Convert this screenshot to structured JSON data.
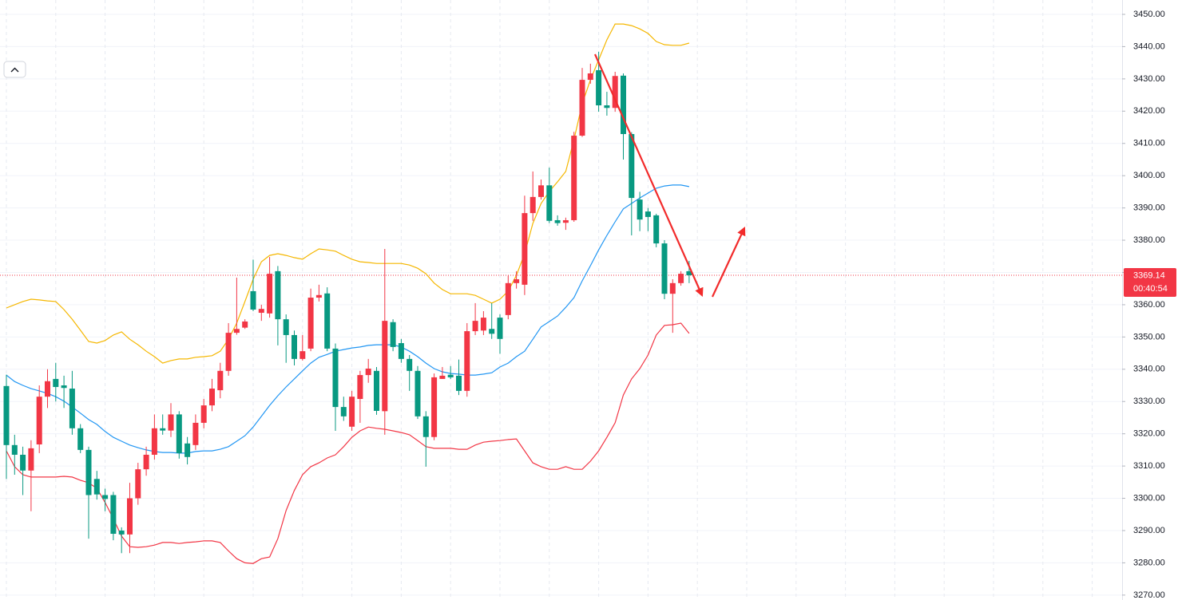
{
  "chart_data": {
    "type": "candlestick",
    "up_color": "#f23645",
    "down_color": "#089981",
    "grid": true,
    "open": [
      3334.8,
      3316.5,
      3313.5,
      3308.6,
      3316.7,
      3331.5,
      3337,
      3335,
      3334,
      3321.7,
      3315,
      3306,
      3301,
      3301,
      3290,
      3288.8,
      3300,
      3309,
      3313.5,
      3321.7,
      3321,
      3326,
      3317,
      3316.5,
      3323.4,
      3328.8,
      3333.5,
      3339.5,
      3351.3,
      3352.9,
      3364.2,
      3357.5,
      3357.3,
      3370.4,
      3355.5,
      3350.6,
      3343.2,
      3346.4,
      3362.2,
      3363.5,
      3346.4,
      3328.3,
      3322.2,
      3330.8,
      3338.2,
      3339.5,
      3327,
      3354.6,
      3348.1,
      3343.2,
      3339.5,
      3325.4,
      3319,
      3337,
      3338.3,
      3338,
      3333.3,
      3351.8,
      3352,
      3352.5,
      3356,
      3356.8,
      3366.7,
      3366.2,
      3388.4,
      3393.4,
      3397,
      3386.2,
      3385.4,
      3386.2,
      3412.4,
      3429.7,
      3432.7,
      3421.8,
      3421,
      3431,
      3412.9,
      3392.6,
      3388.9,
      3387.7,
      3379,
      3363.4,
      3366.7,
      3370.4
    ],
    "high": [
      3338.3,
      3319.7,
      3316,
      3318,
      3335,
      3340,
      3342,
      3338,
      3339.5,
      3323,
      3316,
      3308.5,
      3303,
      3302,
      3291,
      3304.8,
      3311,
      3316,
      3326,
      3326,
      3329.5,
      3327,
      3319,
      3326,
      3330.8,
      3337,
      3342,
      3354.3,
      3368.4,
      3355.5,
      3374,
      3360,
      3374.8,
      3372,
      3357,
      3352,
      3350.6,
      3365,
      3366.2,
      3365.4,
      3348,
      3331.5,
      3333.3,
      3339.5,
      3343.2,
      3340.7,
      3377.3,
      3355.5,
      3349.4,
      3344.4,
      3341,
      3327,
      3338.7,
      3340.7,
      3341,
      3343,
      3354.3,
      3360.5,
      3358,
      3360.5,
      3357,
      3369,
      3370.4,
      3393.8,
      3401.3,
      3398.8,
      3402.5,
      3387.7,
      3387,
      3413.6,
      3433.4,
      3434.7,
      3438.4,
      3426,
      3432.2,
      3431.7,
      3413.5,
      3395,
      3390,
      3388.2,
      3380,
      3367.9,
      3370.4,
      3373.6
    ],
    "low": [
      3306,
      3307.3,
      3301,
      3296,
      3314,
      3328,
      3330,
      3328,
      3319.7,
      3314,
      3287.5,
      3299.6,
      3296,
      3287,
      3283,
      3283,
      3298,
      3307,
      3312,
      3319.7,
      3319,
      3312.3,
      3310.5,
      3315,
      3321.7,
      3327,
      3331,
      3338,
      3350.7,
      3352.5,
      3358,
      3355,
      3356,
      3347.4,
      3342,
      3341.2,
      3342.7,
      3345.6,
      3361,
      3345.6,
      3320.9,
      3324,
      3320.9,
      3323.4,
      3335.8,
      3325.9,
      3319.7,
      3345.6,
      3342,
      3333.3,
      3324.6,
      3309.8,
      3318,
      3337,
      3337,
      3332,
      3331.5,
      3350.6,
      3350.6,
      3349.4,
      3344.8,
      3355.5,
      3365,
      3363,
      3386,
      3392.6,
      3385.3,
      3384.5,
      3383.2,
      3385.7,
      3412,
      3428.5,
      3419.8,
      3418.6,
      3419.8,
      3405,
      3381.5,
      3382.8,
      3382.8,
      3377.8,
      3361.7,
      3351.3,
      3365.9,
      3366.7
    ],
    "close": [
      3316.5,
      3313.5,
      3308.6,
      3315.5,
      3331.5,
      3336.3,
      3334.5,
      3334.2,
      3321.7,
      3315,
      3301,
      3301.2,
      3299.8,
      3289,
      3288.8,
      3300,
      3309,
      3313.5,
      3321.7,
      3321,
      3326,
      3314,
      3312.8,
      3323.4,
      3328.8,
      3334,
      3339.5,
      3351.3,
      3352.5,
      3354.8,
      3358.5,
      3358.7,
      3369.6,
      3355.5,
      3350.6,
      3343.2,
      3345.6,
      3362.2,
      3363,
      3346.4,
      3328.3,
      3325.4,
      3331.5,
      3338.2,
      3340.2,
      3327.1,
      3355,
      3346.9,
      3343.2,
      3339.5,
      3325.4,
      3319,
      3337.5,
      3338,
      3337.5,
      3333.3,
      3351.8,
      3355,
      3356,
      3351,
      3349.4,
      3366.7,
      3367.9,
      3388.4,
      3393.4,
      3397,
      3386,
      3385.3,
      3386.2,
      3412.4,
      3429.7,
      3431.7,
      3421.8,
      3421,
      3430.9,
      3412.9,
      3393.1,
      3386.4,
      3387.2,
      3379,
      3363.4,
      3366.7,
      3369.6,
      3369.14
    ],
    "overlays": [
      {
        "color": "#f5b700",
        "values": [
          3359.0,
          3360.0,
          3361.0,
          3361.7,
          3361.5,
          3361.2,
          3361.0,
          3358.5,
          3355.5,
          3352.1,
          3348.6,
          3348.1,
          3348.9,
          3350.6,
          3351.6,
          3349.3,
          3347.6,
          3345.6,
          3343.9,
          3341.9,
          3342.7,
          3343.2,
          3343.2,
          3343.7,
          3343.9,
          3344.2,
          3345.6,
          3349.3,
          3354.3,
          3361.0,
          3367.9,
          3373.3,
          3375.3,
          3375.8,
          3375.3,
          3374.6,
          3374.1,
          3375.8,
          3377.3,
          3377.0,
          3376.6,
          3375.3,
          3374.1,
          3373.3,
          3373.1,
          3372.8,
          3372.8,
          3372.8,
          3372.8,
          3372.3,
          3371.3,
          3369.6,
          3366.7,
          3364.7,
          3363.4,
          3363.4,
          3363.4,
          3362.9,
          3361.7,
          3360.5,
          3361.7,
          3364.2,
          3369.1,
          3375.8,
          3385.2,
          3391.4,
          3395.1,
          3398.1,
          3401.3,
          3411.2,
          3422.3,
          3429.7,
          3435.9,
          3442.1,
          3447.0,
          3447.0,
          3446.5,
          3445.5,
          3444.1,
          3441.6,
          3440.6,
          3440.4,
          3440.4,
          3441.1
        ]
      },
      {
        "color": "#2196f3",
        "values": [
          3338.2,
          3336.2,
          3335.0,
          3334.0,
          3333.3,
          3332.5,
          3331.5,
          3330.1,
          3328.3,
          3326.4,
          3324.4,
          3322.9,
          3320.7,
          3318.9,
          3317.7,
          3316.5,
          3315.7,
          3315.0,
          3314.5,
          3314.2,
          3314.2,
          3314.0,
          3314.0,
          3314.5,
          3314.7,
          3314.7,
          3315.2,
          3316.0,
          3317.7,
          3319.4,
          3322.1,
          3325.4,
          3328.8,
          3331.8,
          3334.5,
          3337.0,
          3339.5,
          3341.9,
          3343.7,
          3344.6,
          3345.6,
          3346.1,
          3346.6,
          3346.9,
          3347.4,
          3347.6,
          3347.6,
          3347.6,
          3346.9,
          3345.6,
          3343.9,
          3341.9,
          3340.2,
          3339.2,
          3338.7,
          3338.5,
          3338.2,
          3338.2,
          3338.5,
          3338.9,
          3340.7,
          3341.9,
          3343.9,
          3345.6,
          3349.3,
          3353.1,
          3354.8,
          3356.5,
          3359.2,
          3362.2,
          3367.4,
          3372.1,
          3377.0,
          3381.5,
          3385.7,
          3389.7,
          3391.4,
          3393.1,
          3394.6,
          3396.1,
          3396.8,
          3397.1,
          3397.1,
          3396.6
        ]
      },
      {
        "color": "#f23645",
        "values": [
          3314.7,
          3309.8,
          3307.3,
          3306.6,
          3306.6,
          3306.6,
          3306.6,
          3306.8,
          3306.6,
          3305.6,
          3304.8,
          3303.1,
          3298.7,
          3293.7,
          3288.3,
          3285.0,
          3284.8,
          3285.0,
          3285.5,
          3286.3,
          3286.3,
          3286.0,
          3286.3,
          3286.5,
          3286.8,
          3286.8,
          3286.3,
          3283.7,
          3281.3,
          3280.0,
          3279.8,
          3281.3,
          3281.8,
          3287.5,
          3296.2,
          3302.4,
          3307.3,
          3309.8,
          3311.0,
          3312.5,
          3313.5,
          3316.0,
          3318.9,
          3320.9,
          3322.1,
          3321.7,
          3321.4,
          3320.9,
          3320.4,
          3319.7,
          3317.9,
          3316.0,
          3315.5,
          3315.5,
          3315.5,
          3315.2,
          3315.2,
          3316.5,
          3317.4,
          3317.7,
          3317.9,
          3318.2,
          3318.4,
          3314.7,
          3311.0,
          3309.8,
          3309.0,
          3309.0,
          3309.8,
          3309.0,
          3309.0,
          3311.5,
          3314.7,
          3318.9,
          3323.4,
          3332.0,
          3337.0,
          3340.2,
          3344.4,
          3350.6,
          3353.6,
          3353.8,
          3354.3,
          3351.1
        ]
      }
    ],
    "ylim": [
      3268.48,
      3454.45
    ],
    "yticks": [
      {
        "value": 3450,
        "label": "3450.00"
      },
      {
        "value": 3440,
        "label": "3440.00"
      },
      {
        "value": 3430,
        "label": "3430.00"
      },
      {
        "value": 3420,
        "label": "3420.00"
      },
      {
        "value": 3410,
        "label": "3410.00"
      },
      {
        "value": 3400,
        "label": "3400.00"
      },
      {
        "value": 3390,
        "label": "3390.00"
      },
      {
        "value": 3380,
        "label": "3380.00"
      },
      {
        "value": 3370,
        "label": "3370.00"
      },
      {
        "value": 3360,
        "label": "3360.00"
      },
      {
        "value": 3350,
        "label": "3350.00"
      },
      {
        "value": 3340,
        "label": "3340.00"
      },
      {
        "value": 3330,
        "label": "3330.00"
      },
      {
        "value": 3320,
        "label": "3320.00"
      },
      {
        "value": 3310,
        "label": "3310.00"
      },
      {
        "value": 3300,
        "label": "3300.00"
      },
      {
        "value": 3290,
        "label": "3290.00"
      },
      {
        "value": 3280,
        "label": "3280.00"
      },
      {
        "value": 3270,
        "label": "3270.00"
      }
    ],
    "last_price": 3369.14,
    "countdown": "00:40:54"
  }
}
